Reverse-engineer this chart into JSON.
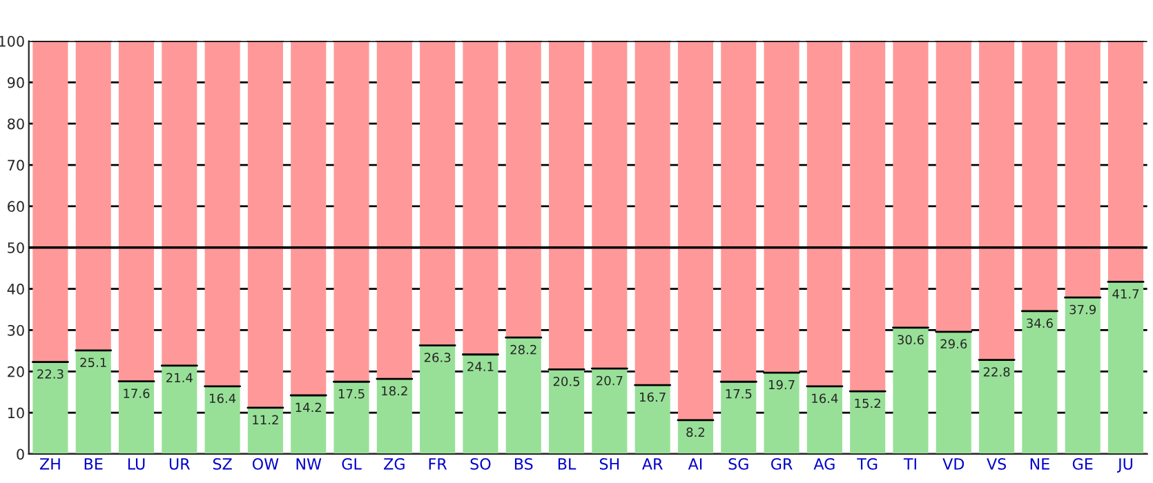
{
  "chart_data": {
    "type": "bar",
    "stacked": true,
    "categories": [
      "ZH",
      "BE",
      "LU",
      "UR",
      "SZ",
      "OW",
      "NW",
      "GL",
      "ZG",
      "FR",
      "SO",
      "BS",
      "BL",
      "SH",
      "AR",
      "AI",
      "SG",
      "GR",
      "AG",
      "TG",
      "TI",
      "VD",
      "VS",
      "NE",
      "GE",
      "JU"
    ],
    "series": [
      {
        "color": "#98e098",
        "values": [
          22.3,
          25.1,
          17.6,
          21.4,
          16.4,
          11.2,
          14.2,
          17.5,
          18.2,
          26.3,
          24.1,
          28.2,
          20.5,
          20.7,
          16.7,
          8.2,
          17.5,
          19.7,
          16.4,
          15.2,
          30.6,
          29.6,
          22.8,
          34.6,
          37.9,
          41.7
        ],
        "value_labels": [
          "22.3",
          "25.1",
          "17.6",
          "21.4",
          "16.4",
          "11.2",
          "14.2",
          "17.5",
          "18.2",
          "26.3",
          "24.1",
          "28.2",
          "20.5",
          "20.7",
          "16.7",
          "8.2",
          "17.5",
          "19.7",
          "16.4",
          "15.2",
          "30.6",
          "29.6",
          "22.8",
          "34.6",
          "37.9",
          "41.7"
        ]
      },
      {
        "color": "#ff9999",
        "values": [
          77.7,
          74.9,
          82.4,
          78.6,
          83.6,
          88.8,
          85.8,
          82.5,
          81.8,
          73.7,
          75.9,
          71.8,
          79.5,
          79.3,
          83.3,
          91.8,
          82.5,
          80.3,
          83.6,
          84.8,
          69.4,
          70.4,
          77.2,
          65.4,
          62.1,
          58.3
        ]
      }
    ],
    "ylim": [
      0,
      100
    ],
    "yticks": [
      0,
      10,
      20,
      30,
      40,
      50,
      60,
      70,
      80,
      90,
      100
    ],
    "grid": "y",
    "ref_lines": [
      {
        "axis": "y",
        "value": 50,
        "color": "#000000"
      }
    ]
  }
}
